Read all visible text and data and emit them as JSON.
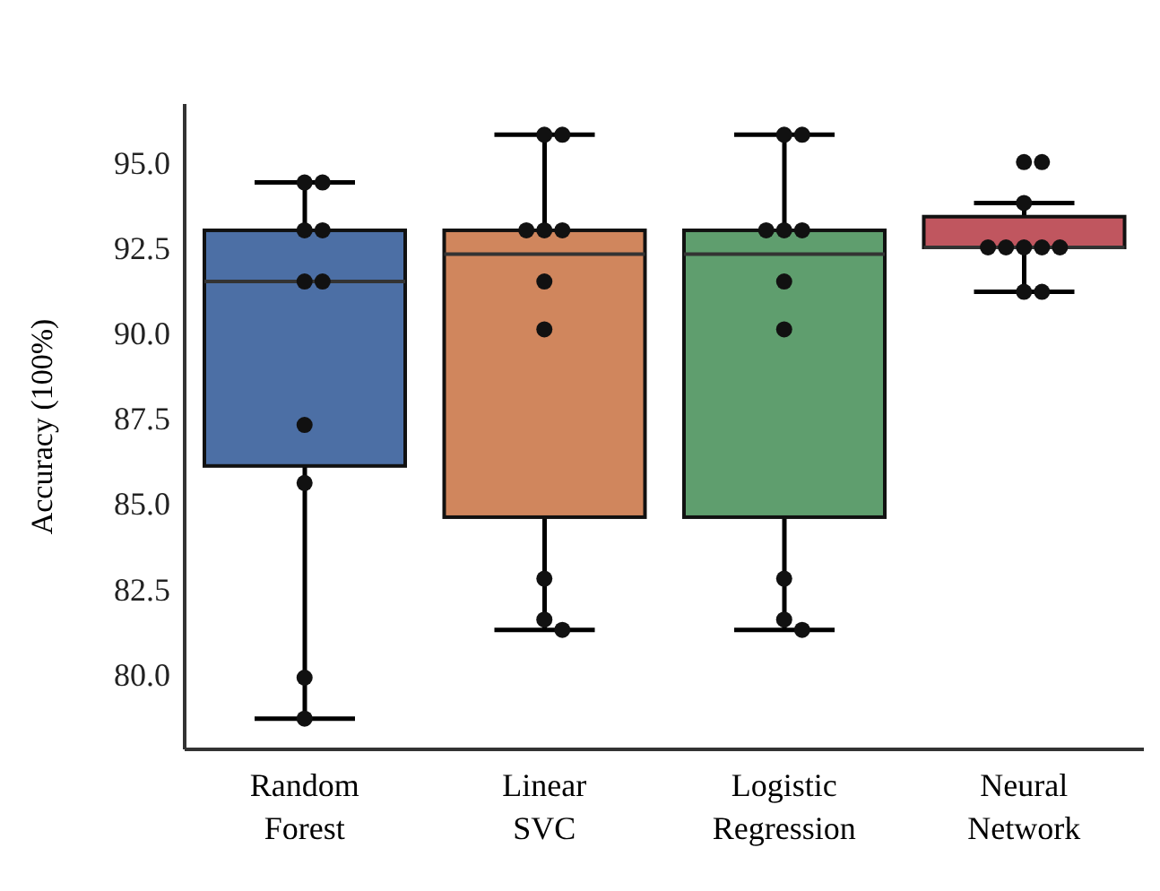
{
  "chart_data": {
    "type": "box",
    "ylabel": "Accuracy (100%)",
    "categories": [
      "Random Forest",
      "Linear SVC",
      "Logistic Regression",
      "Neural Network"
    ],
    "colors": [
      "#4c6fa5",
      "#d0865d",
      "#5f9e6e",
      "#c0565f"
    ],
    "boxes": [
      {
        "low": 78.7,
        "q1": 86.1,
        "median": 91.5,
        "q3": 93.0,
        "high": 94.4
      },
      {
        "low": 81.3,
        "q1": 84.6,
        "median": 92.3,
        "q3": 93.0,
        "high": 95.8
      },
      {
        "low": 81.3,
        "q1": 84.6,
        "median": 92.3,
        "q3": 93.0,
        "high": 95.8
      },
      {
        "low": 91.2,
        "q1": 92.5,
        "median": 92.5,
        "q3": 93.4,
        "high": 93.8
      }
    ],
    "series": [
      {
        "type": "scatter",
        "color": "#111111",
        "x": [
          "Random Forest",
          "Random Forest",
          "Random Forest",
          "Random Forest",
          "Random Forest",
          "Random Forest",
          "Random Forest",
          "Random Forest",
          "Random Forest",
          "Random Forest",
          "Linear SVC",
          "Linear SVC",
          "Linear SVC",
          "Linear SVC",
          "Linear SVC",
          "Linear SVC",
          "Linear SVC",
          "Linear SVC",
          "Linear SVC",
          "Linear SVC",
          "Logistic Regression",
          "Logistic Regression",
          "Logistic Regression",
          "Logistic Regression",
          "Logistic Regression",
          "Logistic Regression",
          "Logistic Regression",
          "Logistic Regression",
          "Logistic Regression",
          "Logistic Regression",
          "Neural Network",
          "Neural Network",
          "Neural Network",
          "Neural Network",
          "Neural Network",
          "Neural Network",
          "Neural Network",
          "Neural Network",
          "Neural Network",
          "Neural Network"
        ],
        "values": [
          94.4,
          94.4,
          93.0,
          93.0,
          91.5,
          91.5,
          87.3,
          85.6,
          79.9,
          78.7,
          95.8,
          95.8,
          93.0,
          93.0,
          93.0,
          91.5,
          90.1,
          82.8,
          81.6,
          81.3,
          95.8,
          95.8,
          93.0,
          93.0,
          93.0,
          91.5,
          90.1,
          82.8,
          81.6,
          81.3,
          95.0,
          95.0,
          93.8,
          92.5,
          92.5,
          92.5,
          92.5,
          92.5,
          91.2,
          91.2
        ]
      }
    ],
    "ylim": [
      77.8,
      96.7
    ],
    "yticks": [
      {
        "value": 80,
        "label": "80.0"
      },
      {
        "value": 82.5,
        "label": "82.5"
      },
      {
        "value": 85,
        "label": "85.0"
      },
      {
        "value": 87.5,
        "label": "87.5"
      },
      {
        "value": 90,
        "label": "90.0"
      },
      {
        "value": 92.5,
        "label": "92.5"
      },
      {
        "value": 95,
        "label": "95.0"
      }
    ],
    "grid": false,
    "legend": false
  }
}
